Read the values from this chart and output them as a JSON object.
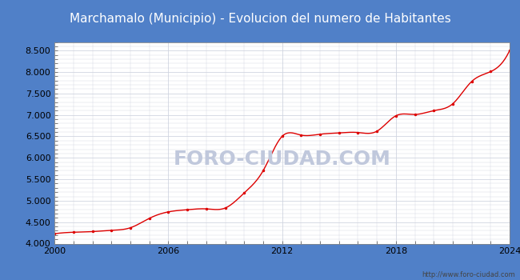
{
  "title": "Marchamalo (Municipio) - Evolucion del numero de Habitantes",
  "title_bg_color": "#5080c8",
  "title_text_color": "#ffffff",
  "outer_bg_color": "#5080c8",
  "plot_bg_color": "#e8ecf4",
  "inner_plot_color": "#ffffff",
  "line_color": "#dd0000",
  "watermark_text": "FORO-CIUDAD.COM",
  "watermark_color": "#c0c8dc",
  "url_text": "http://www.foro-ciudad.com",
  "years": [
    2000,
    2001,
    2002,
    2003,
    2004,
    2005,
    2006,
    2007,
    2008,
    2009,
    2010,
    2011,
    2012,
    2013,
    2014,
    2015,
    2016,
    2017,
    2018,
    2019,
    2020,
    2021,
    2022,
    2023,
    2024
  ],
  "population": [
    4230,
    4265,
    4280,
    4310,
    4370,
    4590,
    4740,
    4790,
    4810,
    4830,
    5180,
    5700,
    6500,
    6530,
    6550,
    6580,
    6590,
    6620,
    6980,
    7010,
    7100,
    7260,
    7780,
    8010,
    8500
  ],
  "ylim": [
    4000,
    8700
  ],
  "xlim": [
    2000,
    2024
  ],
  "yticks": [
    4000,
    4500,
    5000,
    5500,
    6000,
    6500,
    7000,
    7500,
    8000,
    8500
  ],
  "xticks": [
    2000,
    2006,
    2012,
    2018,
    2024
  ],
  "grid_color": "#d0d4e0",
  "tick_fontsize": 8,
  "title_fontsize": 11
}
